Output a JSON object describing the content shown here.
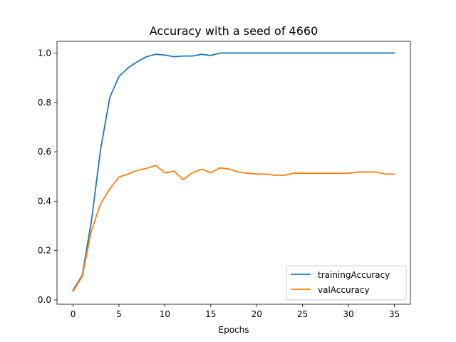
{
  "chart_data": {
    "type": "line",
    "title": "Accuracy with a seed of 4660",
    "xlabel": "Epochs",
    "ylabel": "",
    "xlim": [
      -1.75,
      36.75
    ],
    "ylim": [
      -0.0175,
      1.0475
    ],
    "xticks": [
      0,
      5,
      10,
      15,
      20,
      25,
      30,
      35
    ],
    "yticks": [
      0.0,
      0.2,
      0.4,
      0.6,
      0.8,
      1.0
    ],
    "xtick_labels": [
      "0",
      "5",
      "10",
      "15",
      "20",
      "25",
      "30",
      "35"
    ],
    "ytick_labels": [
      "0.0",
      "0.2",
      "0.4",
      "0.6",
      "0.8",
      "1.0"
    ],
    "grid": false,
    "legend_position": "lower-right",
    "x": [
      0,
      1,
      2,
      3,
      4,
      5,
      6,
      7,
      8,
      9,
      10,
      11,
      12,
      13,
      14,
      15,
      16,
      17,
      18,
      19,
      20,
      21,
      22,
      23,
      24,
      25,
      26,
      27,
      28,
      29,
      30,
      31,
      32,
      33,
      34,
      35
    ],
    "series": [
      {
        "name": "trainingAccuracy",
        "color": "#1f77b4",
        "values": [
          0.04,
          0.1,
          0.32,
          0.61,
          0.82,
          0.905,
          0.94,
          0.965,
          0.985,
          0.995,
          0.992,
          0.985,
          0.988,
          0.988,
          0.995,
          0.99,
          1.0,
          1.0,
          1.0,
          1.0,
          1.0,
          1.0,
          1.0,
          1.0,
          1.0,
          1.0,
          1.0,
          1.0,
          1.0,
          1.0,
          1.0,
          1.0,
          1.0,
          1.0,
          1.0,
          1.0
        ]
      },
      {
        "name": "valAccuracy",
        "color": "#ff7f0e",
        "values": [
          0.035,
          0.095,
          0.28,
          0.39,
          0.45,
          0.498,
          0.51,
          0.525,
          0.533,
          0.545,
          0.515,
          0.522,
          0.487,
          0.515,
          0.53,
          0.515,
          0.535,
          0.53,
          0.518,
          0.513,
          0.51,
          0.51,
          0.505,
          0.505,
          0.513,
          0.513,
          0.513,
          0.513,
          0.513,
          0.513,
          0.513,
          0.518,
          0.518,
          0.518,
          0.51,
          0.51
        ]
      }
    ]
  }
}
